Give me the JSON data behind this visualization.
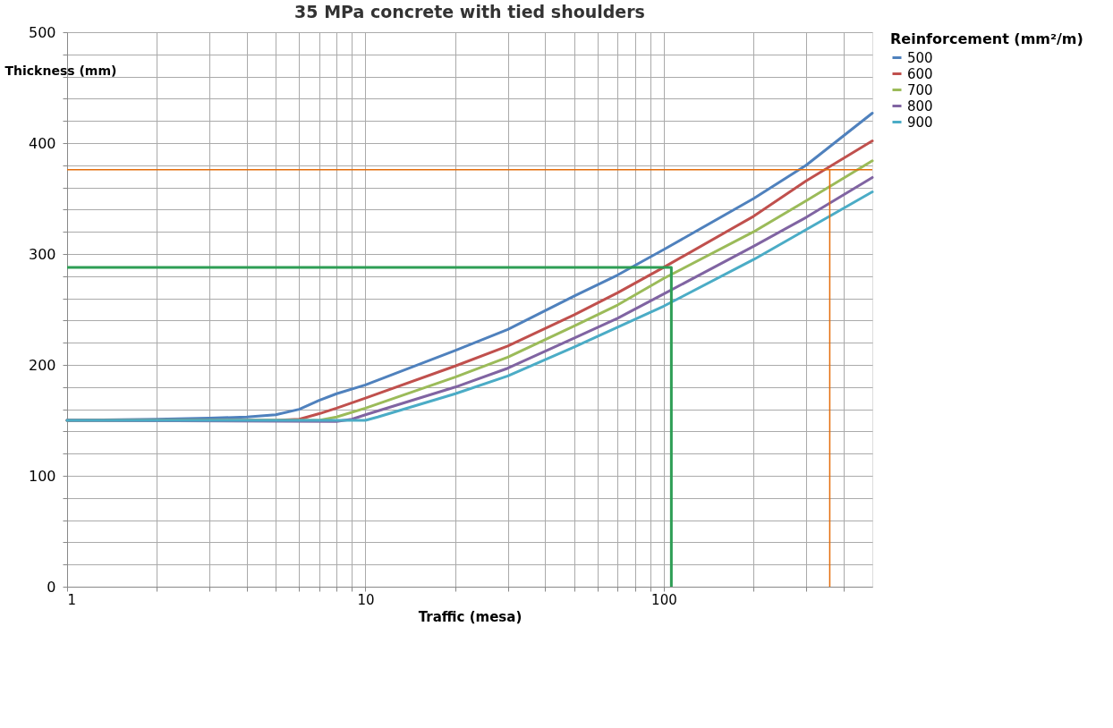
{
  "chart_data": {
    "type": "line",
    "title": "35 MPa concrete with tied shoulders",
    "xlabel": "Traffic (mesa)",
    "ylabel": "Thickness (mm)",
    "legend_title": "Reinforcement (mm²/m)",
    "log": "x",
    "grid": true,
    "legend": "top right",
    "marker": "none",
    "line_style": "solid",
    "xlim": [
      1,
      500
    ],
    "ylim": [
      0,
      500
    ],
    "xticks": [
      1,
      {
        "value": 2,
        "label": null
      },
      {
        "value": 3,
        "label": null
      },
      {
        "value": 4,
        "label": null
      },
      {
        "value": 5,
        "label": null
      },
      {
        "value": 6,
        "label": null
      },
      {
        "value": 7,
        "label": null
      },
      {
        "value": 8,
        "label": null
      },
      {
        "value": 9,
        "label": null
      },
      10,
      {
        "value": 20,
        "label": null
      },
      {
        "value": 30,
        "label": null
      },
      {
        "value": 40,
        "label": null
      },
      {
        "value": 50,
        "label": null
      },
      {
        "value": 60,
        "label": null
      },
      {
        "value": 70,
        "label": null
      },
      {
        "value": 80,
        "label": null
      },
      {
        "value": 90,
        "label": null
      },
      100,
      {
        "value": 200,
        "label": null
      },
      {
        "value": 300,
        "label": null
      },
      {
        "value": 400,
        "label": null
      }
    ],
    "yticks": [
      0,
      {
        "value": 20,
        "label": null
      },
      {
        "value": 40,
        "label": null
      },
      {
        "value": 60,
        "label": null
      },
      {
        "value": 80,
        "label": null
      },
      100,
      {
        "value": 120,
        "label": null
      },
      {
        "value": 140,
        "label": null
      },
      {
        "value": 160,
        "label": null
      },
      {
        "value": 180,
        "label": null
      },
      200,
      {
        "value": 220,
        "label": null
      },
      {
        "value": 240,
        "label": null
      },
      {
        "value": 260,
        "label": null
      },
      {
        "value": 280,
        "label": null
      },
      300,
      {
        "value": 320,
        "label": null
      },
      {
        "value": 340,
        "label": null
      },
      {
        "value": 360,
        "label": null
      },
      {
        "value": 380,
        "label": null
      },
      400,
      {
        "value": 420,
        "label": null
      },
      {
        "value": 440,
        "label": null
      },
      {
        "value": 460,
        "label": null
      },
      {
        "value": 480,
        "label": null
      },
      500
    ],
    "series": [
      {
        "name": "500",
        "color": "#4f81bd",
        "x": [
          1,
          2,
          3,
          4,
          5,
          6,
          7,
          8,
          10,
          20,
          30,
          50,
          70,
          100,
          200,
          300,
          500
        ],
        "values": [
          150,
          151,
          152,
          153,
          155,
          160,
          168,
          174,
          182,
          213,
          232,
          262,
          281,
          304,
          350,
          380,
          427
        ]
      },
      {
        "name": "600",
        "color": "#c0504d",
        "x": [
          1,
          5,
          6,
          7,
          8,
          10,
          20,
          30,
          50,
          70,
          100,
          200,
          300,
          500
        ],
        "values": [
          150,
          150,
          151,
          156,
          161,
          170,
          199,
          217,
          245,
          265,
          288,
          334,
          366,
          402
        ]
      },
      {
        "name": "700",
        "color": "#9bbb59",
        "x": [
          1,
          7,
          8,
          10,
          20,
          30,
          50,
          70,
          100,
          200,
          300,
          500
        ],
        "values": [
          150,
          150,
          153,
          161,
          189,
          207,
          235,
          254,
          278,
          320,
          348,
          384
        ]
      },
      {
        "name": "800",
        "color": "#8064a2",
        "x": [
          1,
          8,
          9,
          10,
          20,
          30,
          50,
          70,
          100,
          200,
          300,
          500
        ],
        "values": [
          150,
          149,
          151,
          155,
          180,
          197,
          224,
          242,
          264,
          307,
          333,
          369
        ]
      },
      {
        "name": "900",
        "color": "#4bacc6",
        "x": [
          1,
          10,
          11,
          20,
          30,
          50,
          70,
          100,
          200,
          300,
          500
        ],
        "values": [
          150,
          150,
          153,
          174,
          190,
          216,
          234,
          253,
          295,
          322,
          356
        ]
      },
      {
        "color": "#2e9e55",
        "x": [
          1,
          106,
          106
        ],
        "values": [
          288,
          288,
          0
        ]
      },
      {
        "color": "#e46c0a",
        "x": [
          1,
          500
        ],
        "values": [
          376,
          376
        ]
      },
      {
        "color": "#e46c0a",
        "x": [
          360,
          360
        ],
        "values": [
          376,
          0
        ]
      }
    ]
  }
}
